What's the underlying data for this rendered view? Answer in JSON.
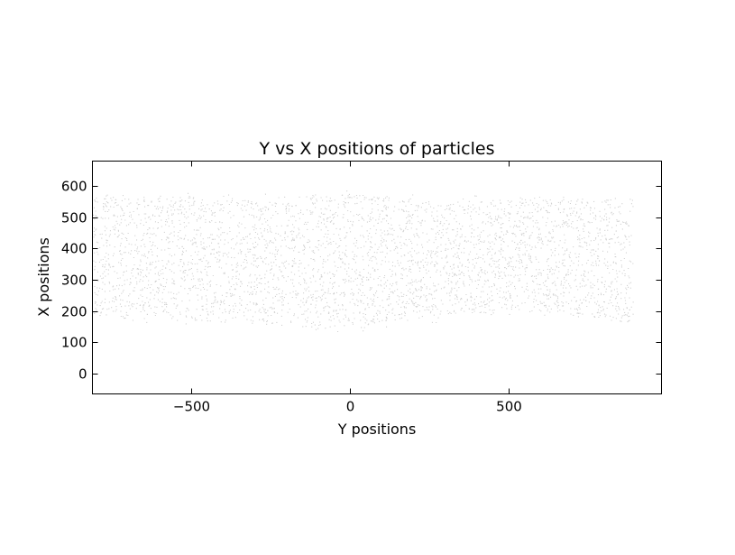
{
  "chart_data": {
    "type": "scatter",
    "title": "Y vs X positions of particles",
    "xlabel": "Y positions",
    "ylabel": "X positions",
    "xlim": [
      -810,
      980
    ],
    "ylim": [
      -65,
      680
    ],
    "x_ticks": [
      -500,
      0,
      500
    ],
    "y_ticks": [
      0,
      100,
      200,
      300,
      400,
      500,
      600
    ],
    "x_tick_labels": [
      "−500",
      "0",
      "500"
    ],
    "y_tick_labels": [
      "0",
      "100",
      "200",
      "300",
      "400",
      "500",
      "600"
    ],
    "grid": false,
    "legend": "none",
    "point_color": "#9a9a9a",
    "series": [
      {
        "x_range": [
          -810,
          890
        ],
        "y_range": [
          120,
          610
        ],
        "y_band_bottom": [
          [
            -810,
            180
          ],
          [
            -300,
            160
          ],
          [
            0,
            140
          ],
          [
            300,
            190
          ],
          [
            600,
            200
          ],
          [
            890,
            160
          ]
        ],
        "y_band_top": [
          [
            -810,
            570
          ],
          [
            -300,
            560
          ],
          [
            0,
            575
          ],
          [
            300,
            555
          ],
          [
            600,
            560
          ],
          [
            890,
            560
          ]
        ],
        "streak_slope": -0.35,
        "approx_point_count": 12000
      }
    ]
  }
}
